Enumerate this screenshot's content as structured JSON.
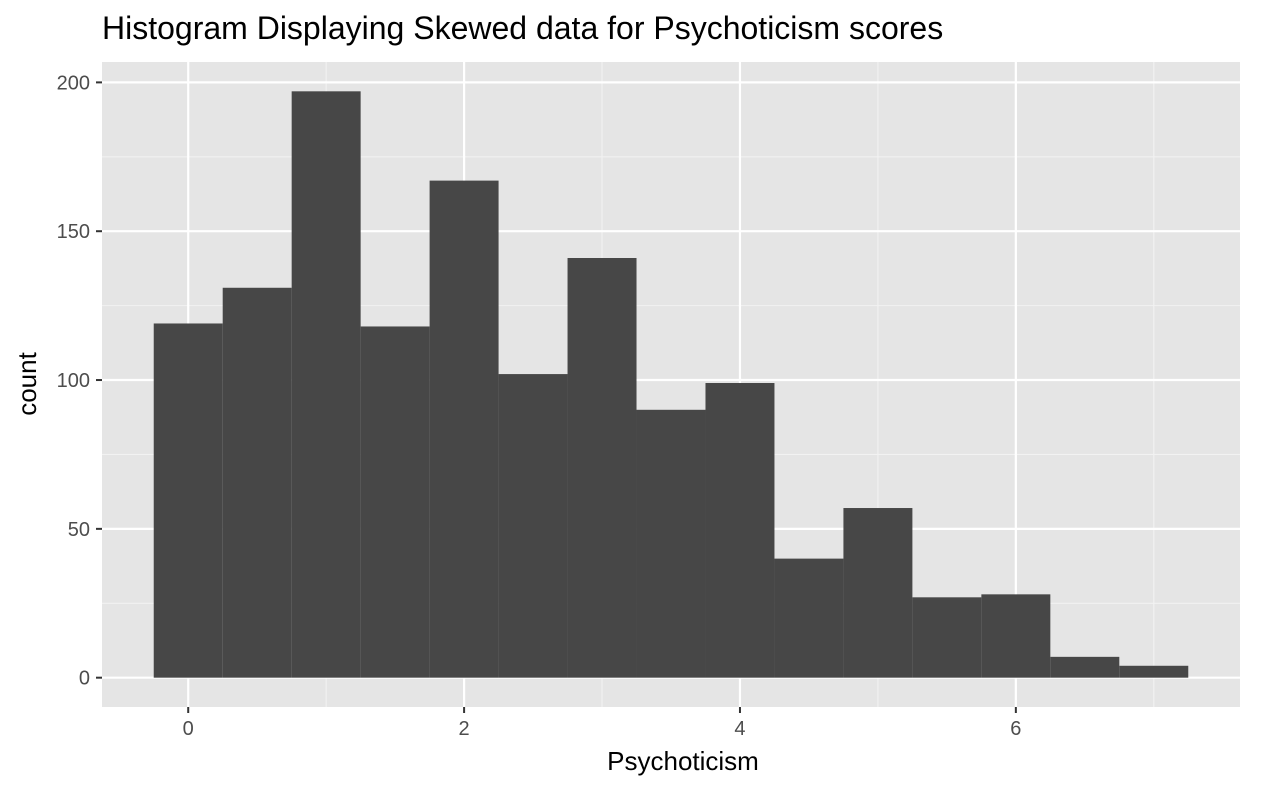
{
  "chart_data": {
    "type": "bar",
    "title": "Histogram Displaying Skewed data for Psychoticism scores",
    "xlabel": "Psychoticism",
    "ylabel": "count",
    "xlim": [
      -0.625,
      7.625
    ],
    "ylim": [
      -9.85,
      206.85
    ],
    "x_ticks": [
      0,
      2,
      4,
      6
    ],
    "y_ticks": [
      0,
      50,
      100,
      150,
      200
    ],
    "bin_width": 0.5,
    "bins": [
      {
        "x": 0.0,
        "count": 119
      },
      {
        "x": 0.5,
        "count": 131
      },
      {
        "x": 1.0,
        "count": 197
      },
      {
        "x": 1.5,
        "count": 118
      },
      {
        "x": 2.0,
        "count": 167
      },
      {
        "x": 2.5,
        "count": 102
      },
      {
        "x": 3.0,
        "count": 141
      },
      {
        "x": 3.5,
        "count": 90
      },
      {
        "x": 4.0,
        "count": 99
      },
      {
        "x": 4.5,
        "count": 40
      },
      {
        "x": 5.0,
        "count": 57
      },
      {
        "x": 5.5,
        "count": 27
      },
      {
        "x": 6.0,
        "count": 28
      },
      {
        "x": 6.5,
        "count": 7
      },
      {
        "x": 7.0,
        "count": 4
      }
    ],
    "grid": true,
    "colors": {
      "panel": "#e5e5e5",
      "grid_major": "#ffffff",
      "grid_minor": "#f2f2f2",
      "bar": "#474747",
      "tick_text": "#4d4d4d",
      "tick_mark": "#333333"
    }
  }
}
